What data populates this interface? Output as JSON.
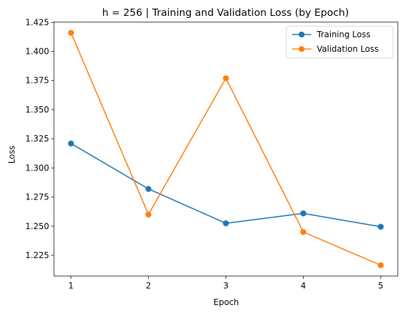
{
  "chart_data": {
    "type": "line",
    "title": "h = 256 | Training and Validation Loss (by Epoch)",
    "xlabel": "Epoch",
    "ylabel": "Loss",
    "x": [
      1,
      2,
      3,
      4,
      5
    ],
    "xticks": [
      "1",
      "2",
      "3",
      "4",
      "5"
    ],
    "xlim": [
      0.78,
      5.22
    ],
    "ylim": [
      1.2072,
      1.4252
    ],
    "yticks": [
      1.225,
      1.25,
      1.275,
      1.3,
      1.325,
      1.35,
      1.375,
      1.4,
      1.425
    ],
    "ytick_labels": [
      "1.225",
      "1.250",
      "1.275",
      "1.300",
      "1.325",
      "1.350",
      "1.375",
      "1.400",
      "1.425"
    ],
    "grid": false,
    "legend_position": "upper right",
    "series": [
      {
        "name": "Training Loss",
        "color": "#1f77b4",
        "marker": "circle",
        "values": [
          1.321,
          1.282,
          1.2525,
          1.261,
          1.2495
        ]
      },
      {
        "name": "Validation Loss",
        "color": "#ff7f0e",
        "marker": "circle",
        "values": [
          1.416,
          1.26,
          1.377,
          1.245,
          1.2165
        ]
      }
    ]
  }
}
